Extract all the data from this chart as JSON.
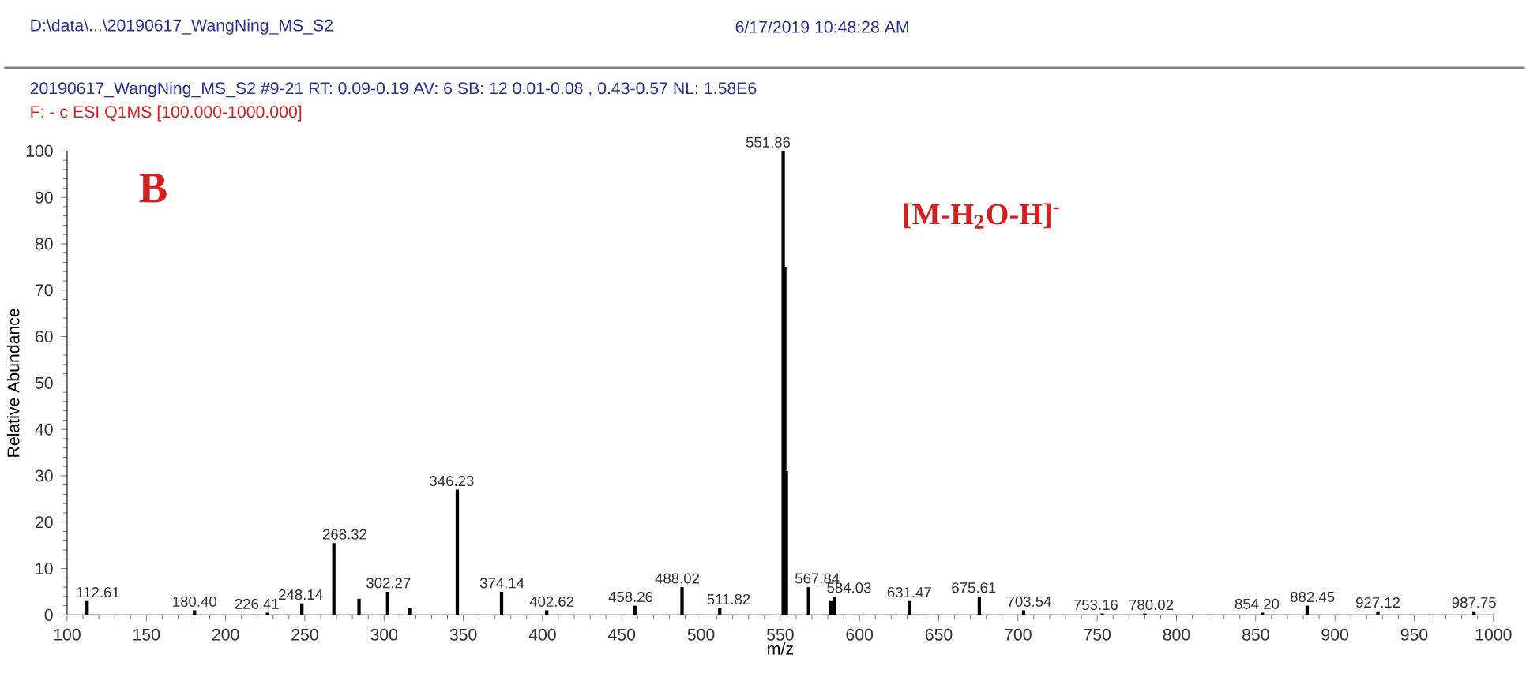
{
  "chart_data": {
    "type": "bar",
    "xlabel": "m/z",
    "ylabel": "Relative Abundance",
    "color": "#000000",
    "x": [
      112.61,
      180.4,
      226.41,
      248.14,
      268.32,
      284.2,
      302.27,
      316.1,
      346.23,
      374.14,
      402.62,
      458.26,
      488.02,
      511.82,
      551.86,
      552.86,
      553.86,
      567.84,
      581.9,
      584.03,
      631.47,
      675.61,
      703.54,
      753.16,
      780.02,
      854.2,
      882.45,
      927.12,
      987.75
    ],
    "values": [
      3,
      1,
      0.5,
      2.5,
      15.5,
      3.5,
      5,
      1.5,
      27,
      5,
      1,
      2,
      6,
      1.5,
      100,
      75,
      31,
      6,
      3,
      4,
      3,
      4,
      1,
      0.3,
      0.3,
      0.5,
      2,
      0.8,
      0.8
    ],
    "xlim": [
      100,
      1000
    ],
    "ylim": [
      0,
      100
    ],
    "xticks": [
      100,
      150,
      200,
      250,
      300,
      350,
      400,
      450,
      500,
      550,
      600,
      650,
      700,
      750,
      800,
      850,
      900,
      950,
      1000
    ],
    "yticks": [
      0,
      10,
      20,
      30,
      40,
      50,
      60,
      70,
      80,
      90,
      100
    ],
    "annotations": [
      "D:\\data\\...\\20190617_WangNing_MS_S2",
      "6/17/2019 10:48:28 AM",
      "20190617_WangNing_MS_S2 #9-21  RT: 0.09-0.19  AV: 6  SB: 12 0.01-0.08 , 0.43-0.57  NL: 1.58E6",
      "F: - c ESI Q1MS [100.000-1000.000]",
      "B",
      "[M-H$_{2}$O-H]$^{-}$",
      {
        "text": "112.61",
        "x": 112.61,
        "y": 3
      },
      {
        "text": "180.40",
        "x": 180.4,
        "y": 1
      },
      {
        "text": "226.41",
        "x": 226.41,
        "y": 0.5
      },
      {
        "text": "248.14",
        "x": 248.14,
        "y": 2.5
      },
      {
        "text": "268.32",
        "x": 268.32,
        "y": 15.5
      },
      {
        "text": "302.27",
        "x": 302.27,
        "y": 5
      },
      {
        "text": "346.23",
        "x": 346.23,
        "y": 27
      },
      {
        "text": "374.14",
        "x": 374.14,
        "y": 5
      },
      {
        "text": "402.62",
        "x": 402.62,
        "y": 1
      },
      {
        "text": "458.26",
        "x": 458.26,
        "y": 2
      },
      {
        "text": "488.02",
        "x": 488.02,
        "y": 6
      },
      {
        "text": "511.82",
        "x": 511.82,
        "y": 1.5
      },
      {
        "text": "551.86",
        "x": 551.86,
        "y": 100
      },
      {
        "text": "567.84",
        "x": 567.84,
        "y": 6
      },
      {
        "text": "584.03",
        "x": 584.03,
        "y": 4
      },
      {
        "text": "631.47",
        "x": 631.47,
        "y": 3
      },
      {
        "text": "675.61",
        "x": 675.61,
        "y": 4
      },
      {
        "text": "703.54",
        "x": 703.54,
        "y": 1
      },
      {
        "text": "753.16",
        "x": 753.16,
        "y": 0.3
      },
      {
        "text": "780.02",
        "x": 780.02,
        "y": 0.3
      },
      {
        "text": "854.20",
        "x": 854.2,
        "y": 0.5
      },
      {
        "text": "882.45",
        "x": 882.45,
        "y": 2
      },
      {
        "text": "927.12",
        "x": 927.12,
        "y": 0.8
      },
      {
        "text": "987.75",
        "x": 987.75,
        "y": 0.8
      }
    ]
  }
}
